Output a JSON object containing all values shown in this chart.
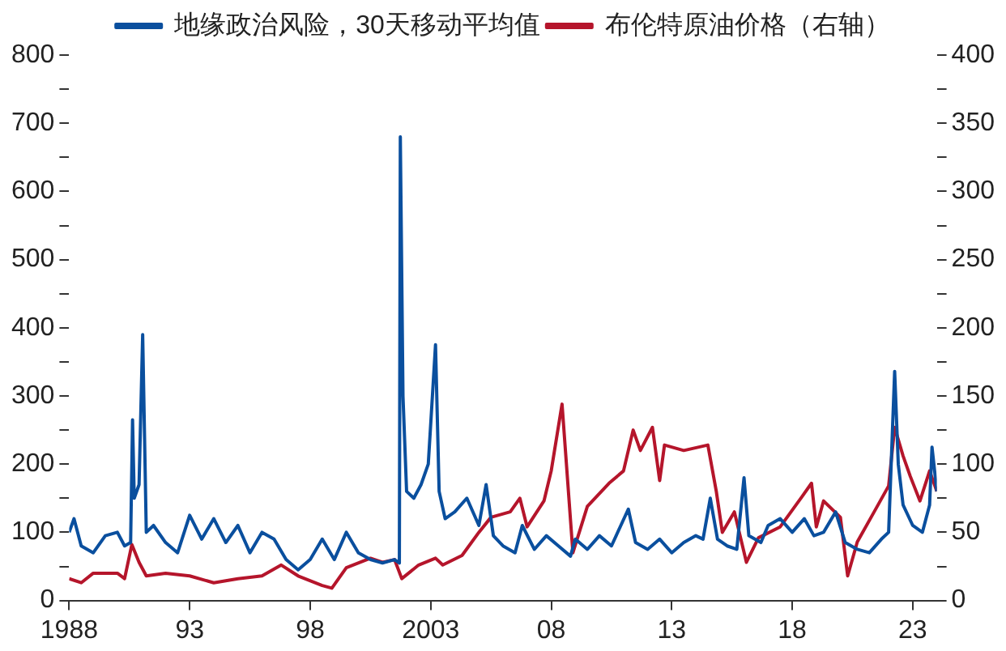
{
  "chart_data": {
    "type": "line",
    "xlim": [
      1988,
      2024
    ],
    "xticks": [
      1988,
      {
        "value": 1993,
        "label": "93"
      },
      {
        "value": 1998,
        "label": "98"
      },
      2003,
      {
        "value": 2008,
        "label": "08"
      },
      {
        "value": 2013,
        "label": "13"
      },
      {
        "value": 2018,
        "label": "18"
      },
      {
        "value": 2023,
        "label": "23"
      }
    ],
    "ylim": [
      0,
      800
    ],
    "yticks": [
      0,
      {
        "value": 50,
        "label": null
      },
      100,
      {
        "value": 150,
        "label": null
      },
      200,
      {
        "value": 250,
        "label": null
      },
      300,
      {
        "value": 350,
        "label": null
      },
      400,
      {
        "value": 450,
        "label": null
      },
      500,
      {
        "value": 550,
        "label": null
      },
      600,
      {
        "value": 650,
        "label": null
      },
      700,
      {
        "value": 750,
        "label": null
      },
      800
    ],
    "y2lim": [
      0,
      400
    ],
    "y2ticks": [
      0,
      {
        "value": 25,
        "label": null
      },
      50,
      {
        "value": 75,
        "label": null
      },
      100,
      {
        "value": 125,
        "label": null
      },
      150,
      {
        "value": 175,
        "label": null
      },
      200,
      {
        "value": 225,
        "label": null
      },
      250,
      {
        "value": 275,
        "label": null
      },
      300,
      {
        "value": 325,
        "label": null
      },
      350,
      {
        "value": 375,
        "label": null
      },
      400
    ],
    "grid": false,
    "legend": "top",
    "marker": "none",
    "line_style": "solid",
    "series": [
      {
        "name": "地缘政治风险，30天移动平均值",
        "color": "#0a4f9e",
        "x": [
          1988.0,
          1988.2,
          1988.5,
          1989,
          1989.5,
          1990,
          1990.3,
          1990.55,
          1990.63,
          1990.7,
          1990.9,
          1991.05,
          1991.2,
          1991.5,
          1992,
          1992.5,
          1993,
          1993.5,
          1994,
          1994.5,
          1995,
          1995.5,
          1996,
          1996.5,
          1997,
          1997.5,
          1998,
          1998.5,
          1999,
          1999.5,
          2000,
          2000.5,
          2001,
          2001.5,
          2001.7,
          2001.74,
          2001.85,
          2002.0,
          2002.3,
          2002.6,
          2002.9,
          2003.2,
          2003.35,
          2003.6,
          2004,
          2004.5,
          2005,
          2005.3,
          2005.6,
          2006.0,
          2006.5,
          2006.8,
          2007.3,
          2007.8,
          2008.3,
          2008.8,
          2009.0,
          2009.5,
          2010,
          2010.5,
          2011.2,
          2011.5,
          2012,
          2012.5,
          2013,
          2013.5,
          2014.0,
          2014.3,
          2014.6,
          2014.9,
          2015.3,
          2015.7,
          2016.0,
          2016.2,
          2016.7,
          2017,
          2017.5,
          2018,
          2018.5,
          2018.9,
          2019.3,
          2019.8,
          2020.2,
          2020.7,
          2021.2,
          2021.7,
          2022.0,
          2022.25,
          2022.4,
          2022.6,
          2023,
          2023.4,
          2023.7,
          2023.8,
          2024.0
        ],
        "values": [
          100,
          120,
          80,
          70,
          95,
          100,
          80,
          85,
          265,
          150,
          170,
          390,
          100,
          110,
          85,
          70,
          125,
          90,
          120,
          85,
          110,
          70,
          100,
          90,
          60,
          45,
          60,
          90,
          60,
          100,
          70,
          60,
          55,
          60,
          55,
          680,
          300,
          160,
          150,
          170,
          200,
          375,
          160,
          120,
          130,
          150,
          110,
          170,
          95,
          80,
          70,
          110,
          75,
          95,
          80,
          65,
          90,
          75,
          95,
          80,
          134,
          85,
          75,
          90,
          70,
          85,
          95,
          90,
          150,
          90,
          80,
          75,
          180,
          95,
          85,
          110,
          120,
          100,
          120,
          95,
          100,
          130,
          85,
          75,
          70,
          90,
          100,
          336,
          200,
          140,
          110,
          100,
          140,
          225,
          160
        ]
      },
      {
        "name": "布伦特原油价格（右轴）",
        "color": "#b5152b",
        "axis": "y2",
        "x": [
          1988,
          1988.5,
          1989,
          1990,
          1990.3,
          1990.6,
          1990.9,
          1991.2,
          1992,
          1993,
          1994,
          1995,
          1996,
          1996.8,
          1997.5,
          1998.5,
          1998.9,
          1999.5,
          2000.5,
          2001,
          2001.5,
          2001.8,
          2002.5,
          2003.2,
          2003.5,
          2004.3,
          2005,
          2005.5,
          2006.3,
          2006.7,
          2007.0,
          2007.7,
          2008.0,
          2008.45,
          2008.9,
          2009.5,
          2010.4,
          2011.0,
          2011.4,
          2011.7,
          2012.2,
          2012.5,
          2012.7,
          2013.5,
          2014.5,
          2014.85,
          2015.1,
          2015.6,
          2016.1,
          2016.6,
          2017.5,
          2018.4,
          2018.8,
          2019.0,
          2019.3,
          2020.0,
          2020.3,
          2020.7,
          2021.4,
          2022.0,
          2022.25,
          2022.6,
          2022.9,
          2023.3,
          2023.7,
          2024.0
        ],
        "values": [
          16,
          13,
          20,
          20,
          16,
          41,
          28,
          18,
          20,
          18,
          13,
          16,
          18,
          26,
          18,
          11,
          9,
          24,
          31,
          28,
          30,
          16,
          26,
          31,
          26,
          33,
          50,
          61,
          65,
          75,
          54,
          73,
          95,
          144,
          35,
          69,
          86,
          95,
          125,
          110,
          127,
          88,
          114,
          110,
          114,
          80,
          50,
          65,
          28,
          46,
          54,
          76,
          86,
          54,
          73,
          61,
          18,
          43,
          65,
          84,
          127,
          106,
          91,
          73,
          95,
          80
        ]
      }
    ]
  }
}
